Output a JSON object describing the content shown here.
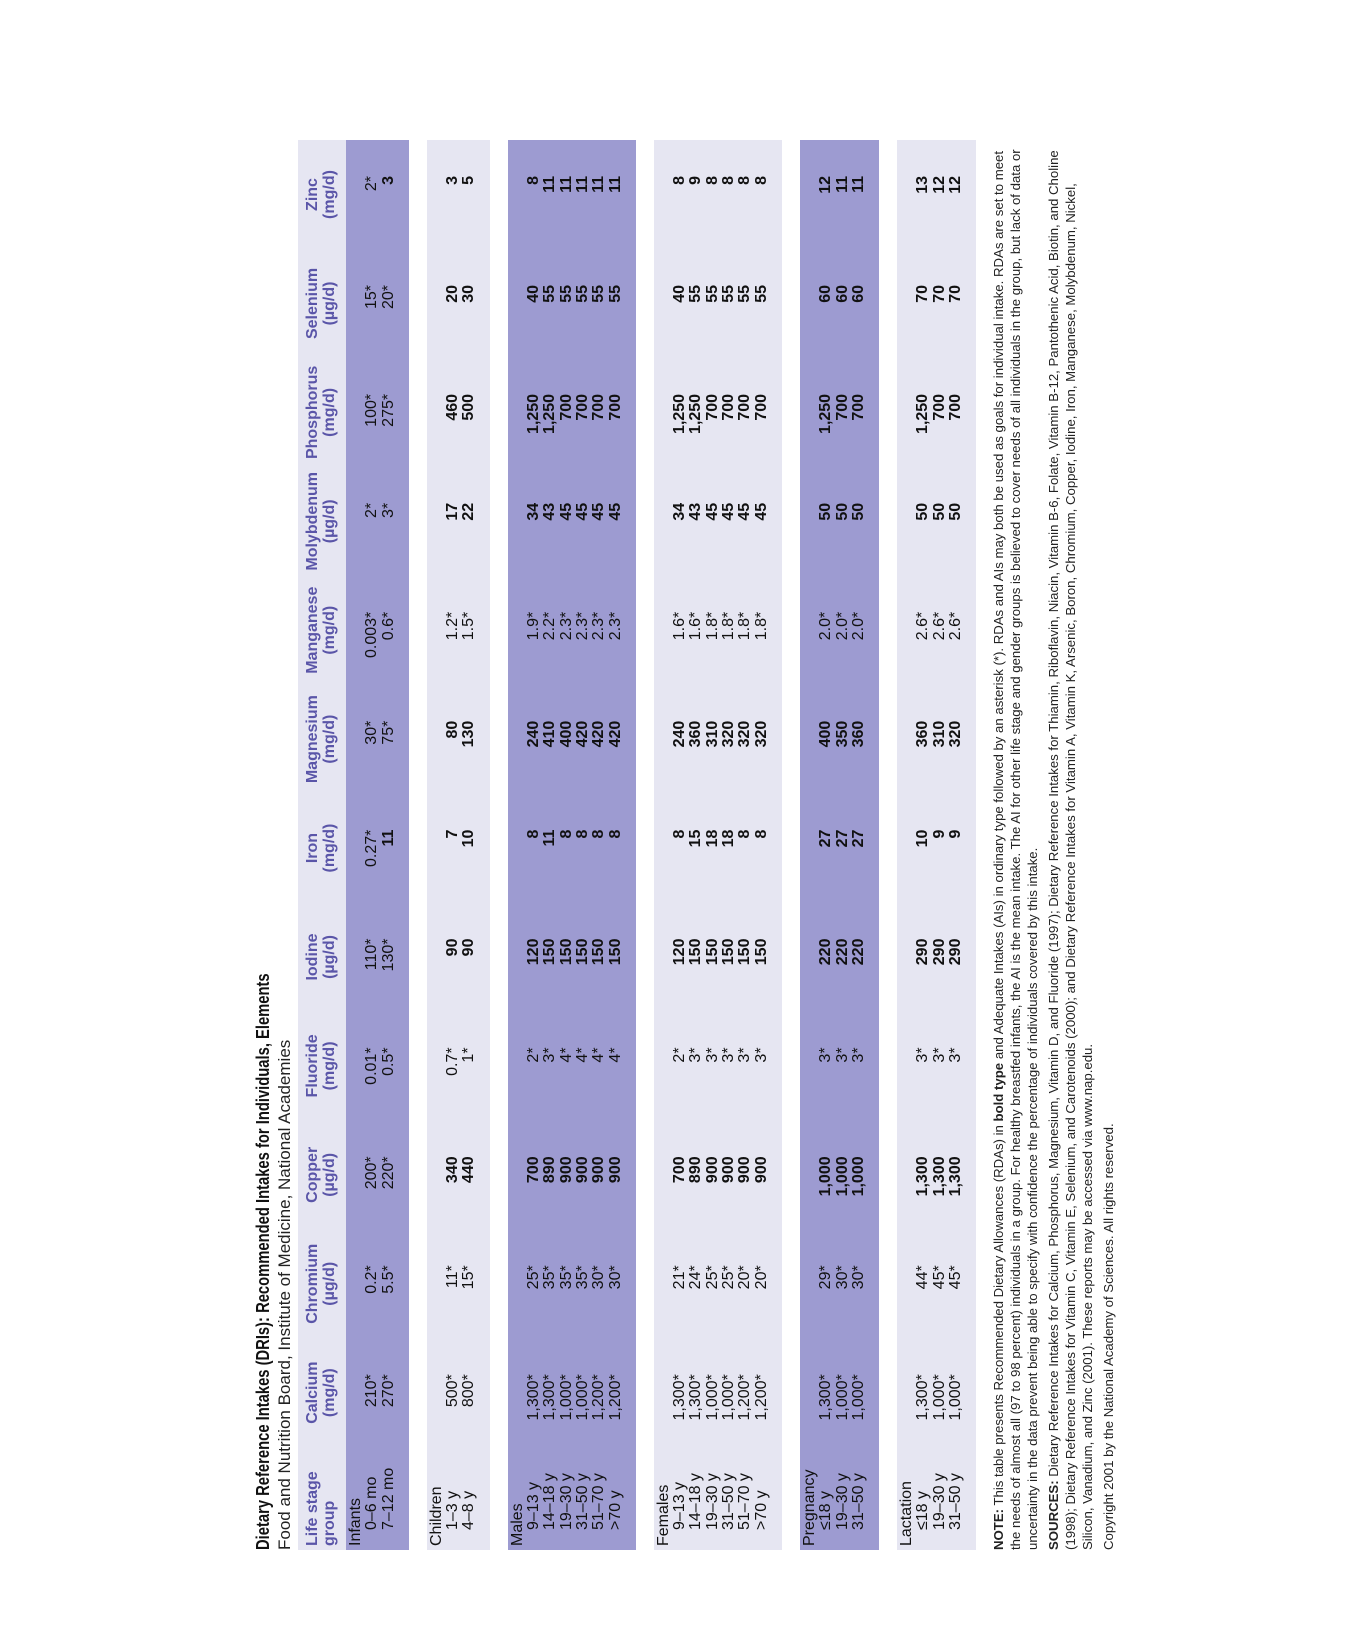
{
  "title": "Dietary Reference Intakes (DRIs): Recommended Intakes for Individuals, Elements",
  "subtitle": "Food and Nutrition Board, Institute of Medicine, National Academies",
  "headers": {
    "life_stage": [
      "Life stage",
      "group"
    ],
    "columns": [
      [
        "Calcium",
        "(mg/d)"
      ],
      [
        "Chromium",
        "(µg/d)"
      ],
      [
        "Copper",
        "(µg/d)"
      ],
      [
        "Fluoride",
        "(mg/d)"
      ],
      [
        "Iodine",
        "(µg/d)"
      ],
      [
        "Iron",
        "(mg/d)"
      ],
      [
        "Magnesium",
        "(mg/d)"
      ],
      [
        "Manganese",
        "(mg/d)"
      ],
      [
        "Molybdenum",
        "(µg/d)"
      ],
      [
        "Phosphorus",
        "(mg/d)"
      ],
      [
        "Selenium",
        "(µg/d)"
      ],
      [
        "Zinc",
        "(mg/d)"
      ]
    ]
  },
  "groups": [
    {
      "name": "Infants",
      "stages": [
        "0–6 mo",
        "7–12 mo"
      ],
      "cols": [
        {
          "vals": [
            "210*",
            "270*"
          ],
          "bold": [
            false,
            false
          ]
        },
        {
          "vals": [
            "0.2*",
            "5.5*"
          ],
          "bold": [
            false,
            false
          ]
        },
        {
          "vals": [
            "200*",
            "220*"
          ],
          "bold": [
            false,
            false
          ]
        },
        {
          "vals": [
            "0.01*",
            "0.5*"
          ],
          "bold": [
            false,
            false
          ]
        },
        {
          "vals": [
            "110*",
            "130*"
          ],
          "bold": [
            false,
            false
          ]
        },
        {
          "vals": [
            "0.27*",
            "11"
          ],
          "bold": [
            false,
            true
          ]
        },
        {
          "vals": [
            "30*",
            "75*"
          ],
          "bold": [
            false,
            false
          ]
        },
        {
          "vals": [
            "0.003*",
            "0.6*"
          ],
          "bold": [
            false,
            false
          ]
        },
        {
          "vals": [
            "2*",
            "3*"
          ],
          "bold": [
            false,
            false
          ]
        },
        {
          "vals": [
            "100*",
            "275*"
          ],
          "bold": [
            false,
            false
          ]
        },
        {
          "vals": [
            "15*",
            "20*"
          ],
          "bold": [
            false,
            false
          ]
        },
        {
          "vals": [
            "2*",
            "3"
          ],
          "bold": [
            false,
            true
          ]
        }
      ]
    },
    {
      "name": "Children",
      "stages": [
        "1–3 y",
        "4–8 y"
      ],
      "cols": [
        {
          "vals": [
            "500*",
            "800*"
          ],
          "bold": [
            false,
            false
          ]
        },
        {
          "vals": [
            "11*",
            "15*"
          ],
          "bold": [
            false,
            false
          ]
        },
        {
          "vals": [
            "340",
            "440"
          ],
          "bold": [
            true,
            true
          ]
        },
        {
          "vals": [
            "0.7*",
            "1*"
          ],
          "bold": [
            false,
            false
          ]
        },
        {
          "vals": [
            "90",
            "90"
          ],
          "bold": [
            true,
            true
          ]
        },
        {
          "vals": [
            "7",
            "10"
          ],
          "bold": [
            true,
            true
          ]
        },
        {
          "vals": [
            "80",
            "130"
          ],
          "bold": [
            true,
            true
          ]
        },
        {
          "vals": [
            "1.2*",
            "1.5*"
          ],
          "bold": [
            false,
            false
          ]
        },
        {
          "vals": [
            "17",
            "22"
          ],
          "bold": [
            true,
            true
          ]
        },
        {
          "vals": [
            "460",
            "500"
          ],
          "bold": [
            true,
            true
          ]
        },
        {
          "vals": [
            "20",
            "30"
          ],
          "bold": [
            true,
            true
          ]
        },
        {
          "vals": [
            "3",
            "5"
          ],
          "bold": [
            true,
            true
          ]
        }
      ]
    },
    {
      "name": "Males",
      "stages": [
        "9–13 y",
        "14–18 y",
        "19–30 y",
        "31–50 y",
        "51–70 y",
        ">70 y"
      ],
      "cols": [
        {
          "vals": [
            "1,300*",
            "1,300*",
            "1,000*",
            "1,000*",
            "1,200*",
            "1,200*"
          ],
          "bold": [
            false,
            false,
            false,
            false,
            false,
            false
          ]
        },
        {
          "vals": [
            "25*",
            "35*",
            "35*",
            "35*",
            "30*",
            "30*"
          ],
          "bold": [
            false,
            false,
            false,
            false,
            false,
            false
          ]
        },
        {
          "vals": [
            "700",
            "890",
            "900",
            "900",
            "900",
            "900"
          ],
          "bold": [
            true,
            true,
            true,
            true,
            true,
            true
          ]
        },
        {
          "vals": [
            "2*",
            "3*",
            "4*",
            "4*",
            "4*",
            "4*"
          ],
          "bold": [
            false,
            false,
            false,
            false,
            false,
            false
          ]
        },
        {
          "vals": [
            "120",
            "150",
            "150",
            "150",
            "150",
            "150"
          ],
          "bold": [
            true,
            true,
            true,
            true,
            true,
            true
          ]
        },
        {
          "vals": [
            "8",
            "11",
            "8",
            "8",
            "8",
            "8"
          ],
          "bold": [
            true,
            true,
            true,
            true,
            true,
            true
          ]
        },
        {
          "vals": [
            "240",
            "410",
            "400",
            "420",
            "420",
            "420"
          ],
          "bold": [
            true,
            true,
            true,
            true,
            true,
            true
          ]
        },
        {
          "vals": [
            "1.9*",
            "2.2*",
            "2.3*",
            "2.3*",
            "2.3*",
            "2.3*"
          ],
          "bold": [
            false,
            false,
            false,
            false,
            false,
            false
          ]
        },
        {
          "vals": [
            "34",
            "43",
            "45",
            "45",
            "45",
            "45"
          ],
          "bold": [
            true,
            true,
            true,
            true,
            true,
            true
          ]
        },
        {
          "vals": [
            "1,250",
            "1,250",
            "700",
            "700",
            "700",
            "700"
          ],
          "bold": [
            true,
            true,
            true,
            true,
            true,
            true
          ]
        },
        {
          "vals": [
            "40",
            "55",
            "55",
            "55",
            "55",
            "55"
          ],
          "bold": [
            true,
            true,
            true,
            true,
            true,
            true
          ]
        },
        {
          "vals": [
            "8",
            "11",
            "11",
            "11",
            "11",
            "11"
          ],
          "bold": [
            true,
            true,
            true,
            true,
            true,
            true
          ]
        }
      ]
    },
    {
      "name": "Females",
      "stages": [
        "9–13 y",
        "14–18 y",
        "19–30 y",
        "31–50 y",
        "51–70 y",
        ">70 y"
      ],
      "cols": [
        {
          "vals": [
            "1,300*",
            "1,300*",
            "1,000*",
            "1,000*",
            "1,200*",
            "1,200*"
          ],
          "bold": [
            false,
            false,
            false,
            false,
            false,
            false
          ]
        },
        {
          "vals": [
            "21*",
            "24*",
            "25*",
            "25*",
            "20*",
            "20*"
          ],
          "bold": [
            false,
            false,
            false,
            false,
            false,
            false
          ]
        },
        {
          "vals": [
            "700",
            "890",
            "900",
            "900",
            "900",
            "900"
          ],
          "bold": [
            true,
            true,
            true,
            true,
            true,
            true
          ]
        },
        {
          "vals": [
            "2*",
            "3*",
            "3*",
            "3*",
            "3*",
            "3*"
          ],
          "bold": [
            false,
            false,
            false,
            false,
            false,
            false
          ]
        },
        {
          "vals": [
            "120",
            "150",
            "150",
            "150",
            "150",
            "150"
          ],
          "bold": [
            true,
            true,
            true,
            true,
            true,
            true
          ]
        },
        {
          "vals": [
            "8",
            "15",
            "18",
            "18",
            "8",
            "8"
          ],
          "bold": [
            true,
            true,
            true,
            true,
            true,
            true
          ]
        },
        {
          "vals": [
            "240",
            "360",
            "310",
            "320",
            "320",
            "320"
          ],
          "bold": [
            true,
            true,
            true,
            true,
            true,
            true
          ]
        },
        {
          "vals": [
            "1.6*",
            "1.6*",
            "1.8*",
            "1.8*",
            "1.8*",
            "1.8*"
          ],
          "bold": [
            false,
            false,
            false,
            false,
            false,
            false
          ]
        },
        {
          "vals": [
            "34",
            "43",
            "45",
            "45",
            "45",
            "45"
          ],
          "bold": [
            true,
            true,
            true,
            true,
            true,
            true
          ]
        },
        {
          "vals": [
            "1,250",
            "1,250",
            "700",
            "700",
            "700",
            "700"
          ],
          "bold": [
            true,
            true,
            true,
            true,
            true,
            true
          ]
        },
        {
          "vals": [
            "40",
            "55",
            "55",
            "55",
            "55",
            "55"
          ],
          "bold": [
            true,
            true,
            true,
            true,
            true,
            true
          ]
        },
        {
          "vals": [
            "8",
            "9",
            "8",
            "8",
            "8",
            "8"
          ],
          "bold": [
            true,
            true,
            true,
            true,
            true,
            true
          ]
        }
      ]
    },
    {
      "name": "Pregnancy",
      "stages": [
        "≤18 y",
        "19–30 y",
        "31–50 y"
      ],
      "cols": [
        {
          "vals": [
            "1,300*",
            "1,000*",
            "1,000*"
          ],
          "bold": [
            false,
            false,
            false
          ]
        },
        {
          "vals": [
            "29*",
            "30*",
            "30*"
          ],
          "bold": [
            false,
            false,
            false
          ]
        },
        {
          "vals": [
            "1,000",
            "1,000",
            "1,000"
          ],
          "bold": [
            true,
            true,
            true
          ]
        },
        {
          "vals": [
            "3*",
            "3*",
            "3*"
          ],
          "bold": [
            false,
            false,
            false
          ]
        },
        {
          "vals": [
            "220",
            "220",
            "220"
          ],
          "bold": [
            true,
            true,
            true
          ]
        },
        {
          "vals": [
            "27",
            "27",
            "27"
          ],
          "bold": [
            true,
            true,
            true
          ]
        },
        {
          "vals": [
            "400",
            "350",
            "360"
          ],
          "bold": [
            true,
            true,
            true
          ]
        },
        {
          "vals": [
            "2.0*",
            "2.0*",
            "2.0*"
          ],
          "bold": [
            false,
            false,
            false
          ]
        },
        {
          "vals": [
            "50",
            "50",
            "50"
          ],
          "bold": [
            true,
            true,
            true
          ]
        },
        {
          "vals": [
            "1,250",
            "700",
            "700"
          ],
          "bold": [
            true,
            true,
            true
          ]
        },
        {
          "vals": [
            "60",
            "60",
            "60"
          ],
          "bold": [
            true,
            true,
            true
          ]
        },
        {
          "vals": [
            "12",
            "11",
            "11"
          ],
          "bold": [
            true,
            true,
            true
          ]
        }
      ]
    },
    {
      "name": "Lactation",
      "stages": [
        "≤18 y",
        "19–30 y",
        "31–50 y"
      ],
      "cols": [
        {
          "vals": [
            "1,300*",
            "1,000*",
            "1,000*"
          ],
          "bold": [
            false,
            false,
            false
          ]
        },
        {
          "vals": [
            "44*",
            "45*",
            "45*"
          ],
          "bold": [
            false,
            false,
            false
          ]
        },
        {
          "vals": [
            "1,300",
            "1,300",
            "1,300"
          ],
          "bold": [
            true,
            true,
            true
          ]
        },
        {
          "vals": [
            "3*",
            "3*",
            "3*"
          ],
          "bold": [
            false,
            false,
            false
          ]
        },
        {
          "vals": [
            "290",
            "290",
            "290"
          ],
          "bold": [
            true,
            true,
            true
          ]
        },
        {
          "vals": [
            "10",
            "9",
            "9"
          ],
          "bold": [
            true,
            true,
            true
          ]
        },
        {
          "vals": [
            "360",
            "310",
            "320"
          ],
          "bold": [
            true,
            true,
            true
          ]
        },
        {
          "vals": [
            "2.6*",
            "2.6*",
            "2.6*"
          ],
          "bold": [
            false,
            false,
            false
          ]
        },
        {
          "vals": [
            "50",
            "50",
            "50"
          ],
          "bold": [
            true,
            true,
            true
          ]
        },
        {
          "vals": [
            "1,250",
            "700",
            "700"
          ],
          "bold": [
            true,
            true,
            true
          ]
        },
        {
          "vals": [
            "70",
            "70",
            "70"
          ],
          "bold": [
            true,
            true,
            true
          ]
        },
        {
          "vals": [
            "13",
            "12",
            "12"
          ],
          "bold": [
            true,
            true,
            true
          ]
        }
      ]
    }
  ],
  "note": {
    "label": "NOTE:",
    "text_before": " This table presents Recommended Dietary Allowances (RDAs) in ",
    "bold_text": "bold type",
    "text_after": " and Adequate Intakes (AIs) in ordinary type followed by an asterisk (*). RDAs and AIs may both be used as goals for individual intake. RDAs are set to meet the needs of almost all (97 to 98 percent) individuals in a group. For healthy breastfed infants, the AI is the mean intake. The AI for other life stage and gender groups is believed to cover needs of all individuals in the group, but lack of data or uncertainty in the data prevent being able to specify with confidence the percentage of individuals covered by this intake."
  },
  "sources": {
    "label": "SOURCES:",
    "text": " Dietary Reference Intakes for Calcium, Phosphorus, Magnesium, Vitamin D, and Fluoride (1997); Dietary Reference Intakes for Thiamin, Riboflavin, Niacin, Vitamin B-6, Folate, Vitamin B-12, Pantothenic Acid, Biotin, and Choline (1998); Dietary Reference Intakes for Vitamin C, Vitamin E, Selenium, and Carotenoids (2000); and Dietary Reference Intakes for Vitamin A, Vitamin K, Arsenic, Boron, Chromium, Copper, Iodine, Iron, Manganese, Molybdenum, Nickel, Silicon, Vanadium, and Zinc (2001). These reports may be accessed via www.nap.edu."
  },
  "copyright": "Copyright 2001 by the National Academy of Sciences. All rights reserved."
}
